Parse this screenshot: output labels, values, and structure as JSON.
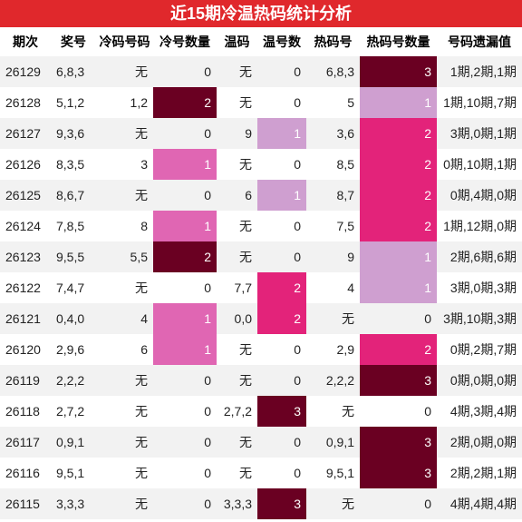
{
  "title": "近15期冷温热码统计分析",
  "table": {
    "header": [
      "期次",
      "奖号",
      "冷码号码",
      "冷号数量",
      "温码",
      "温号数",
      "热码号",
      "热码号数量",
      "号码遗漏值"
    ],
    "rows": [
      [
        26129,
        "6,8,3",
        "无",
        0,
        "无",
        0,
        "6,8,3",
        3,
        "1期,2期,1期"
      ],
      [
        26128,
        "5,1,2",
        "1,2",
        2,
        "无",
        0,
        5,
        1,
        "1期,10期,7期"
      ],
      [
        26127,
        "9,3,6",
        "无",
        0,
        9,
        1,
        "3,6",
        2,
        "3期,0期,1期"
      ],
      [
        26126,
        "8,3,5",
        3,
        1,
        "无",
        0,
        "8,5",
        2,
        "0期,10期,1期"
      ],
      [
        26125,
        "8,6,7",
        "无",
        0,
        6,
        1,
        "8,7",
        2,
        "0期,4期,0期"
      ],
      [
        26124,
        "7,8,5",
        8,
        1,
        "无",
        0,
        "7,5",
        2,
        "1期,12期,0期"
      ],
      [
        26123,
        "9,5,5",
        "5,5",
        2,
        "无",
        0,
        9,
        1,
        "2期,6期,6期"
      ],
      [
        26122,
        "7,4,7",
        "无",
        0,
        "7,7",
        2,
        4,
        1,
        "3期,0期,3期"
      ],
      [
        26121,
        "0,4,0",
        4,
        1,
        "0,0",
        2,
        "无",
        0,
        "3期,10期,3期"
      ],
      [
        26120,
        "2,9,6",
        6,
        1,
        "无",
        0,
        "2,9",
        2,
        "0期,2期,7期"
      ],
      [
        26119,
        "2,2,2",
        "无",
        0,
        "无",
        0,
        "2,2,2",
        3,
        "0期,0期,0期"
      ],
      [
        26118,
        "2,7,2",
        "无",
        0,
        "2,7,2",
        3,
        "无",
        0,
        "4期,3期,4期"
      ],
      [
        26117,
        "0,9,1",
        "无",
        0,
        "无",
        0,
        "0,9,1",
        3,
        "2期,0期,0期"
      ],
      [
        26116,
        "9,5,1",
        "无",
        0,
        "无",
        0,
        "9,5,1",
        3,
        "2期,2期,1期"
      ],
      [
        26115,
        "3,3,3",
        "无",
        0,
        "3,3,3",
        3,
        "无",
        0,
        "4期,4期,4期"
      ]
    ],
    "cell_colors": {
      "3": {
        "1": "#e066b3",
        "2": "#6a0022"
      },
      "5": {
        "1": "#cf9fd0",
        "2": "#e3237a",
        "3": "#6a0022"
      },
      "7": {
        "1": "#cf9fd0",
        "2": "#e3237a",
        "3": "#6a0022"
      }
    }
  }
}
